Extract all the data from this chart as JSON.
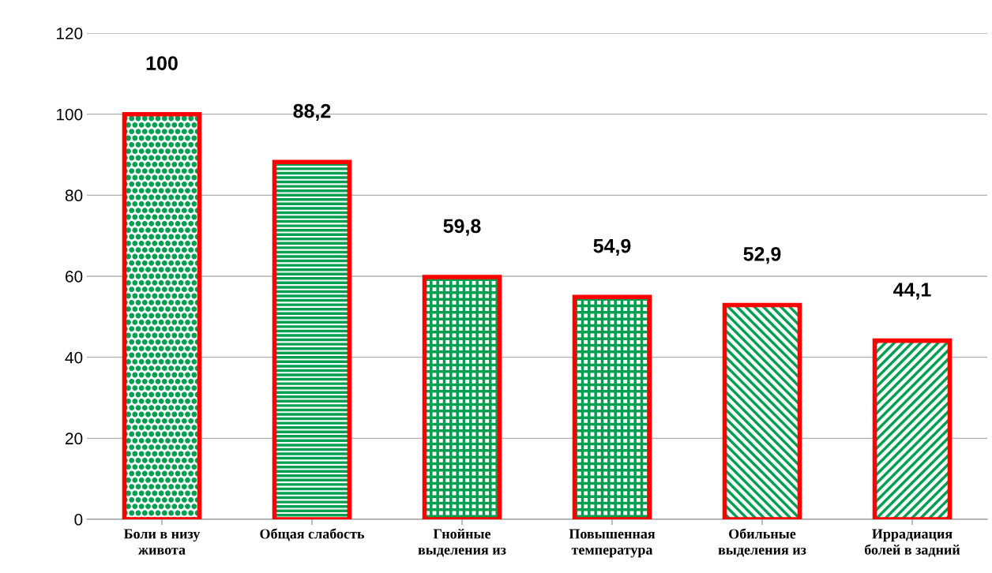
{
  "chart_data": {
    "type": "bar",
    "categories": [
      "Боли в низу\nживота",
      "Общая слабость",
      "Гнойные\nвыделения из",
      "Повышенная\nтемпература",
      "Обильные\nвыделения из",
      "Иррадиация\nболей в задний"
    ],
    "values": [
      100,
      88.2,
      59.8,
      54.9,
      52.9,
      44.1
    ],
    "color": "#ff0000",
    "ylim": [
      0,
      120
    ],
    "yticks": [
      0,
      20,
      40,
      60,
      80,
      100,
      120
    ],
    "grid": "y",
    "data_labels": true,
    "value_labels": [
      "100",
      "88,2",
      "59,8",
      "54,9",
      "52,9",
      "44,1"
    ]
  }
}
